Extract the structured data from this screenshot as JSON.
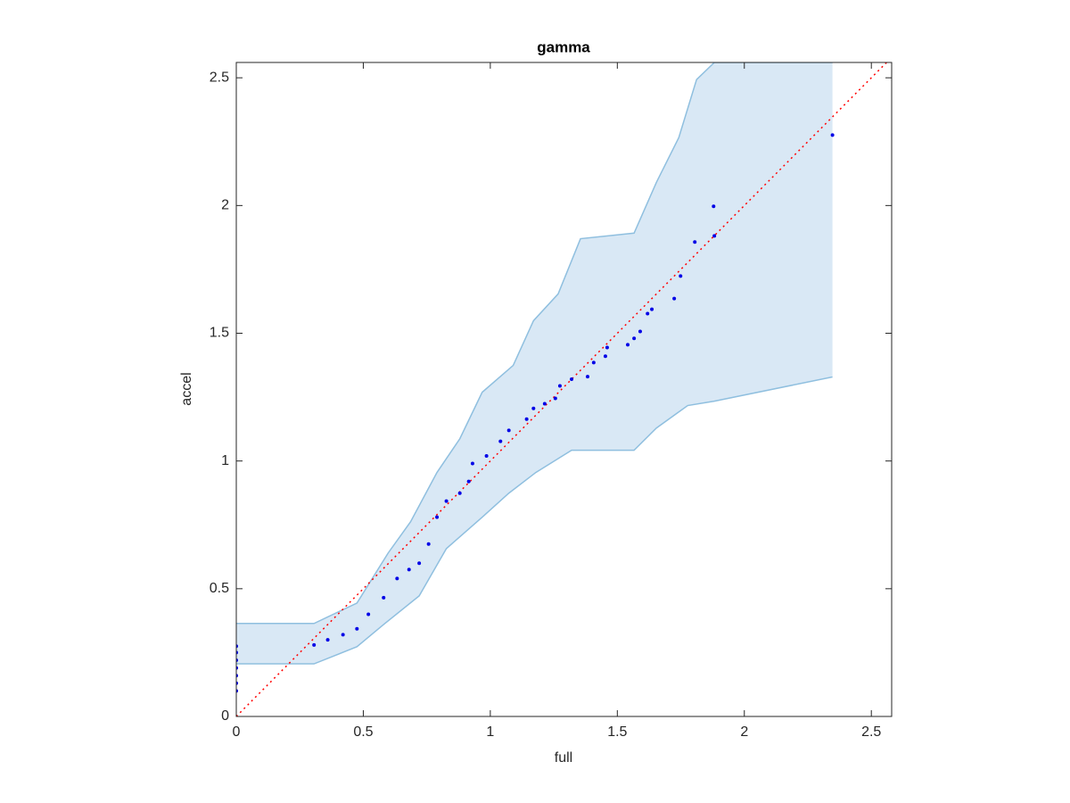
{
  "chart_data": {
    "type": "scatter",
    "title": "gamma",
    "x_label": "full",
    "y_label": "accel",
    "xlim": [
      0,
      2.58
    ],
    "ylim": [
      0,
      2.56
    ],
    "xticks": [
      0,
      0.5,
      1,
      1.5,
      2,
      2.5
    ],
    "yticks": [
      0,
      0.5,
      1,
      1.5,
      2,
      2.5
    ],
    "color": "#0000e6",
    "x": [
      0,
      0,
      0,
      0,
      0,
      0,
      0,
      0.306,
      0.36,
      0.42,
      0.475,
      0.52,
      0.58,
      0.633,
      0.68,
      0.72,
      0.757,
      0.79,
      0.827,
      0.88,
      0.915,
      0.93,
      0.985,
      1.04,
      1.073,
      1.143,
      1.17,
      1.214,
      1.256,
      1.274,
      1.32,
      1.383,
      1.407,
      1.453,
      1.46,
      1.541,
      1.566,
      1.59,
      1.619,
      1.636,
      1.724,
      1.749,
      1.805,
      1.882,
      1.879,
      2.347
    ],
    "y": [
      0.1,
      0.13,
      0.16,
      0.19,
      0.22,
      0.25,
      0.275,
      0.28,
      0.3,
      0.32,
      0.343,
      0.4,
      0.465,
      0.54,
      0.575,
      0.6,
      0.675,
      0.78,
      0.843,
      0.874,
      0.92,
      0.99,
      1.02,
      1.077,
      1.12,
      1.164,
      1.206,
      1.224,
      1.245,
      1.294,
      1.32,
      1.33,
      1.385,
      1.41,
      1.444,
      1.455,
      1.48,
      1.507,
      1.577,
      1.594,
      1.636,
      1.724,
      1.857,
      1.881,
      1.997,
      2.276
    ],
    "band_color": "#d9e8f5",
    "band_edge_color": "#8fbfdf",
    "band_upper": {
      "x": [
        0,
        0.306,
        0.475,
        0.598,
        0.686,
        0.79,
        0.88,
        0.968,
        1.09,
        1.17,
        1.267,
        1.355,
        1.566,
        1.654,
        1.742,
        1.812,
        1.882,
        2.347
      ],
      "y": [
        0.364,
        0.364,
        0.444,
        0.64,
        0.762,
        0.955,
        1.087,
        1.269,
        1.374,
        1.549,
        1.654,
        1.87,
        1.892,
        2.091,
        2.266,
        2.493,
        2.56,
        2.56
      ]
    },
    "band_lower": {
      "x": [
        0,
        0.306,
        0.475,
        0.58,
        0.72,
        0.827,
        0.968,
        1.073,
        1.179,
        1.32,
        1.566,
        1.654,
        1.777,
        1.882,
        2.347
      ],
      "y": [
        0.206,
        0.206,
        0.273,
        0.36,
        0.472,
        0.657,
        0.78,
        0.874,
        0.955,
        1.042,
        1.042,
        1.129,
        1.217,
        1.234,
        1.329
      ]
    },
    "reference_line": {
      "color": "#ff0000",
      "x": [
        0,
        2.6
      ],
      "y": [
        0,
        2.6
      ]
    }
  }
}
